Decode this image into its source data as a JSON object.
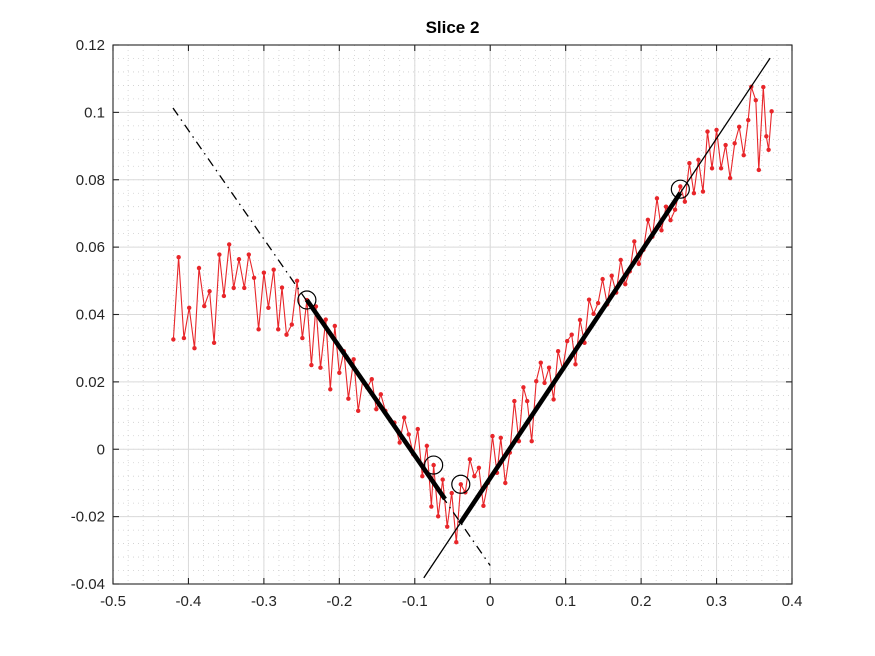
{
  "figure": {
    "background": "#ffffff"
  },
  "chart_data": {
    "type": "line",
    "title": "Slice 2",
    "xlabel": "",
    "ylabel": "",
    "xlim": [
      -0.5,
      0.4
    ],
    "ylim": [
      -0.04,
      0.12
    ],
    "grid": "major solid + minor dotted, both on",
    "legend": "none",
    "x_minor_step": 0.02,
    "y_minor_step": 0.004,
    "xticks": [
      {
        "v": -0.5,
        "label": "-0.5"
      },
      {
        "v": -0.4,
        "label": "-0.4"
      },
      {
        "v": -0.3,
        "label": "-0.3"
      },
      {
        "v": -0.2,
        "label": "-0.2"
      },
      {
        "v": -0.1,
        "label": "-0.1"
      },
      {
        "v": 0,
        "label": "0"
      },
      {
        "v": 0.1,
        "label": "0.1"
      },
      {
        "v": 0.2,
        "label": "0.2"
      },
      {
        "v": 0.3,
        "label": "0.3"
      },
      {
        "v": 0.4,
        "label": "0.4"
      }
    ],
    "yticks": [
      {
        "v": -0.04,
        "label": "-0.04"
      },
      {
        "v": -0.02,
        "label": "-0.02"
      },
      {
        "v": 0,
        "label": "0"
      },
      {
        "v": 0.02,
        "label": "0.02"
      },
      {
        "v": 0.04,
        "label": "0.04"
      },
      {
        "v": 0.06,
        "label": "0.06"
      },
      {
        "v": 0.08,
        "label": "0.08"
      },
      {
        "v": 0.1,
        "label": "0.1"
      },
      {
        "v": 0.12,
        "label": "0.12"
      }
    ],
    "colors": {
      "signal": "#e8262a",
      "fit": "#000000",
      "grid_major": "#dadada",
      "grid_minor": "#c9c9c9",
      "axis": "#252525",
      "tick_label": "#252525"
    },
    "series": [
      {
        "name": "noisy-signal",
        "style": "solid-with-dot-markers",
        "color": "#e8262a",
        "points": [
          [
            -0.42,
            0.0326
          ],
          [
            -0.413,
            0.057
          ],
          [
            -0.406,
            0.033
          ],
          [
            -0.399,
            0.042
          ],
          [
            -0.392,
            0.03
          ],
          [
            -0.386,
            0.0538
          ],
          [
            -0.379,
            0.0425
          ],
          [
            -0.372,
            0.0469
          ],
          [
            -0.366,
            0.0316
          ],
          [
            -0.359,
            0.0578
          ],
          [
            -0.353,
            0.0455
          ],
          [
            -0.346,
            0.0608
          ],
          [
            -0.34,
            0.0479
          ],
          [
            -0.333,
            0.0564
          ],
          [
            -0.326,
            0.0479
          ],
          [
            -0.32,
            0.0578
          ],
          [
            -0.313,
            0.0509
          ],
          [
            -0.307,
            0.0356
          ],
          [
            -0.3,
            0.0524
          ],
          [
            -0.294,
            0.042
          ],
          [
            -0.287,
            0.0533
          ],
          [
            -0.281,
            0.0356
          ],
          [
            -0.276,
            0.048
          ],
          [
            -0.27,
            0.034
          ],
          [
            -0.263,
            0.037
          ],
          [
            -0.256,
            0.05
          ],
          [
            -0.249,
            0.033
          ],
          [
            -0.243,
            0.0443
          ],
          [
            -0.237,
            0.025
          ],
          [
            -0.231,
            0.0424
          ],
          [
            -0.225,
            0.0242
          ],
          [
            -0.218,
            0.0385
          ],
          [
            -0.212,
            0.0178
          ],
          [
            -0.206,
            0.0366
          ],
          [
            -0.2,
            0.0227
          ],
          [
            -0.194,
            0.0291
          ],
          [
            -0.188,
            0.015
          ],
          [
            -0.181,
            0.0267
          ],
          [
            -0.175,
            0.0114
          ],
          [
            -0.169,
            0.0203
          ],
          [
            -0.163,
            0.0183
          ],
          [
            -0.157,
            0.0208
          ],
          [
            -0.151,
            0.0119
          ],
          [
            -0.145,
            0.0163
          ],
          [
            -0.139,
            0.0114
          ],
          [
            -0.133,
            0.0089
          ],
          [
            -0.127,
            0.0079
          ],
          [
            -0.12,
            0.002
          ],
          [
            -0.114,
            0.0094
          ],
          [
            -0.108,
            0.0044
          ],
          [
            -0.102,
            -0.0015
          ],
          [
            -0.096,
            0.006
          ],
          [
            -0.09,
            -0.008
          ],
          [
            -0.084,
            0.001
          ],
          [
            -0.078,
            -0.017
          ],
          [
            -0.075,
            -0.0047
          ],
          [
            -0.069,
            -0.0199
          ],
          [
            -0.063,
            -0.009
          ],
          [
            -0.057,
            -0.023
          ],
          [
            -0.051,
            -0.013
          ],
          [
            -0.045,
            -0.0276
          ],
          [
            -0.039,
            -0.0104
          ],
          [
            -0.033,
            -0.0128
          ],
          [
            -0.027,
            -0.003
          ],
          [
            -0.021,
            -0.008
          ],
          [
            -0.015,
            -0.0055
          ],
          [
            -0.009,
            -0.0168
          ],
          [
            -0.003,
            -0.01
          ],
          [
            0.003,
            0.0039
          ],
          [
            0.009,
            -0.007
          ],
          [
            0.014,
            0.0034
          ],
          [
            0.02,
            -0.01
          ],
          [
            0.026,
            -0.001
          ],
          [
            0.032,
            0.0143
          ],
          [
            0.038,
            0.0024
          ],
          [
            0.044,
            0.0184
          ],
          [
            0.049,
            0.0143
          ],
          [
            0.055,
            0.0024
          ],
          [
            0.061,
            0.0202
          ],
          [
            0.067,
            0.0257
          ],
          [
            0.072,
            0.0197
          ],
          [
            0.078,
            0.0242
          ],
          [
            0.084,
            0.0148
          ],
          [
            0.09,
            0.0291
          ],
          [
            0.096,
            0.0237
          ],
          [
            0.102,
            0.0321
          ],
          [
            0.108,
            0.034
          ],
          [
            0.113,
            0.0252
          ],
          [
            0.119,
            0.0384
          ],
          [
            0.125,
            0.0316
          ],
          [
            0.131,
            0.0444
          ],
          [
            0.137,
            0.0402
          ],
          [
            0.143,
            0.0434
          ],
          [
            0.149,
            0.0505
          ],
          [
            0.155,
            0.043
          ],
          [
            0.161,
            0.0515
          ],
          [
            0.167,
            0.0465
          ],
          [
            0.173,
            0.0562
          ],
          [
            0.179,
            0.049
          ],
          [
            0.185,
            0.0528
          ],
          [
            0.191,
            0.0617
          ],
          [
            0.197,
            0.055
          ],
          [
            0.203,
            0.0592
          ],
          [
            0.209,
            0.0681
          ],
          [
            0.215,
            0.0631
          ],
          [
            0.221,
            0.0745
          ],
          [
            0.227,
            0.065
          ],
          [
            0.233,
            0.072
          ],
          [
            0.239,
            0.068
          ],
          [
            0.245,
            0.0711
          ],
          [
            0.252,
            0.078
          ],
          [
            0.258,
            0.0735
          ],
          [
            0.264,
            0.0849
          ],
          [
            0.27,
            0.076
          ],
          [
            0.276,
            0.0859
          ],
          [
            0.282,
            0.0765
          ],
          [
            0.288,
            0.0943
          ],
          [
            0.294,
            0.0834
          ],
          [
            0.3,
            0.0948
          ],
          [
            0.306,
            0.0834
          ],
          [
            0.312,
            0.0903
          ],
          [
            0.318,
            0.0805
          ],
          [
            0.324,
            0.0908
          ],
          [
            0.33,
            0.0957
          ],
          [
            0.336,
            0.0873
          ],
          [
            0.342,
            0.0977
          ],
          [
            0.346,
            0.1076
          ],
          [
            0.352,
            0.1036
          ],
          [
            0.356,
            0.0829
          ],
          [
            0.362,
            0.1075
          ],
          [
            0.366,
            0.0929
          ],
          [
            0.369,
            0.0889
          ],
          [
            0.373,
            0.1003
          ]
        ]
      },
      {
        "name": "left-fit-line-extension",
        "style": "dash-dot-thin",
        "color": "#000000",
        "points": [
          [
            -0.4205,
            0.1013
          ],
          [
            0.0,
            -0.0345
          ]
        ]
      },
      {
        "name": "right-fit-line-extension",
        "style": "solid-thin",
        "color": "#000000",
        "points": [
          [
            -0.088,
            -0.0382
          ],
          [
            0.371,
            0.1161
          ]
        ]
      },
      {
        "name": "left-fit-segment",
        "style": "solid-thick",
        "color": "#000000",
        "points": [
          [
            -0.243,
            0.0443
          ],
          [
            -0.06,
            -0.0148
          ]
        ]
      },
      {
        "name": "right-fit-segment",
        "style": "solid-thick",
        "color": "#000000",
        "points": [
          [
            -0.04,
            -0.022
          ],
          [
            0.252,
            0.0761
          ]
        ]
      }
    ],
    "highlighted_points": {
      "marker": "open-black-circle",
      "points": [
        [
          -0.243,
          0.0443
        ],
        [
          -0.075,
          -0.0047
        ],
        [
          -0.039,
          -0.0104
        ],
        [
          0.252,
          0.0772
        ]
      ]
    }
  }
}
